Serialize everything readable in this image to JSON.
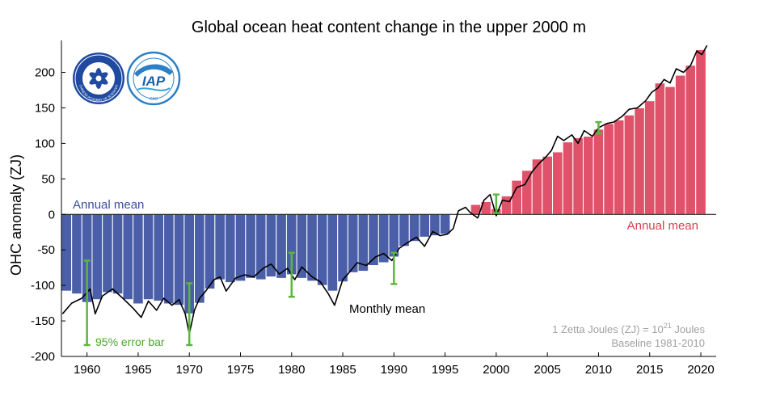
{
  "chart_data": {
    "type": "bar",
    "title": "Global ocean heat content change in the upper 2000 m",
    "xlabel": "",
    "ylabel": "OHC anomaly (ZJ)",
    "xlim": [
      1957.5,
      2021.5
    ],
    "ylim": [
      -200,
      245
    ],
    "xticks": [
      1960,
      1965,
      1970,
      1975,
      1980,
      1985,
      1990,
      1995,
      2000,
      2005,
      2010,
      2015,
      2020
    ],
    "yticks": [
      -200,
      -150,
      -100,
      -50,
      0,
      50,
      100,
      150,
      200
    ],
    "grid": false,
    "colors": {
      "negative": "#4a5fa8",
      "positive": "#e0526a",
      "line": "#000000",
      "error": "#5bb73b",
      "note": "#a0a0a0"
    },
    "series": [
      {
        "name": "Annual mean",
        "x": [
          1958,
          1959,
          1960,
          1961,
          1962,
          1963,
          1964,
          1965,
          1966,
          1967,
          1968,
          1969,
          1970,
          1971,
          1972,
          1973,
          1974,
          1975,
          1976,
          1977,
          1978,
          1979,
          1980,
          1981,
          1982,
          1983,
          1984,
          1985,
          1986,
          1987,
          1988,
          1989,
          1990,
          1991,
          1992,
          1993,
          1994,
          1995,
          1996,
          1997,
          1998,
          1999,
          2000,
          2001,
          2002,
          2003,
          2004,
          2005,
          2006,
          2007,
          2008,
          2009,
          2010,
          2011,
          2012,
          2013,
          2014,
          2015,
          2016,
          2017,
          2018,
          2019,
          2020
        ],
        "values": [
          -108,
          -112,
          -124,
          -120,
          -110,
          -112,
          -120,
          -126,
          -120,
          -122,
          -126,
          -128,
          -140,
          -125,
          -105,
          -92,
          -96,
          -94,
          -90,
          -92,
          -88,
          -90,
          -85,
          -90,
          -94,
          -100,
          -108,
          -95,
          -82,
          -80,
          -72,
          -68,
          -60,
          -45,
          -38,
          -32,
          -30,
          -28,
          0,
          1,
          14,
          18,
          8,
          26,
          48,
          62,
          78,
          82,
          88,
          102,
          108,
          110,
          120,
          128,
          133,
          140,
          150,
          160,
          185,
          180,
          196,
          210,
          232
        ]
      },
      {
        "name": "Monthly mean",
        "x": [
          1957.6,
          1958.5,
          1959.5,
          1960.3,
          1960.8,
          1961.5,
          1962.5,
          1963.5,
          1964.5,
          1965.3,
          1966,
          1966.8,
          1967.5,
          1968.3,
          1969,
          1969.6,
          1970,
          1970.5,
          1971,
          1971.6,
          1972.4,
          1973,
          1973.6,
          1974.5,
          1975.4,
          1976.3,
          1977.3,
          1978,
          1978.8,
          1979.6,
          1980.3,
          1981,
          1982,
          1982.8,
          1983.6,
          1984.2,
          1985,
          1985.5,
          1986.4,
          1987.3,
          1988.2,
          1989,
          1989.8,
          1990.5,
          1991.3,
          1992.2,
          1993,
          1993.8,
          1994.5,
          1995.2,
          1995.8,
          1996.3,
          1997,
          1997.5,
          1998.2,
          1998.8,
          1999.4,
          2000,
          2000.6,
          2001.3,
          2002,
          2002.8,
          2003.5,
          2004.2,
          2004.8,
          2005.4,
          2006,
          2006.6,
          2007.4,
          2008,
          2008.6,
          2009.4,
          2010,
          2010.8,
          2011.5,
          2012.3,
          2013,
          2013.8,
          2014.6,
          2015.2,
          2015.8,
          2016.4,
          2017,
          2017.6,
          2018.3,
          2019,
          2019.6,
          2020.1,
          2020.6
        ],
        "values": [
          -140,
          -125,
          -118,
          -105,
          -140,
          -115,
          -105,
          -118,
          -132,
          -145,
          -122,
          -135,
          -118,
          -128,
          -120,
          -140,
          -168,
          -135,
          -118,
          -108,
          -92,
          -88,
          -108,
          -90,
          -85,
          -88,
          -75,
          -70,
          -84,
          -76,
          -92,
          -74,
          -88,
          -95,
          -112,
          -128,
          -92,
          -84,
          -68,
          -72,
          -60,
          -55,
          -65,
          -48,
          -40,
          -32,
          -45,
          -24,
          -30,
          -28,
          -20,
          5,
          10,
          2,
          -5,
          20,
          28,
          -2,
          20,
          18,
          38,
          42,
          60,
          72,
          80,
          90,
          110,
          104,
          112,
          100,
          118,
          110,
          122,
          128,
          130,
          138,
          148,
          150,
          160,
          172,
          178,
          190,
          185,
          205,
          200,
          210,
          230,
          225,
          238
        ]
      }
    ],
    "error_bars": [
      {
        "x": 1960,
        "lo": -184,
        "hi": -65
      },
      {
        "x": 1970,
        "lo": -184,
        "hi": -97
      },
      {
        "x": 1980,
        "lo": -116,
        "hi": -54
      },
      {
        "x": 1990,
        "lo": -98,
        "hi": -54
      },
      {
        "x": 2000,
        "lo": 2,
        "hi": 28
      },
      {
        "x": 2010,
        "lo": 114,
        "hi": 130
      }
    ],
    "annotations": {
      "annual_mean_left": "Annual mean",
      "annual_mean_right": "Annual mean",
      "monthly_mean": "Monthly mean",
      "error_bar": "95% error bar",
      "unit_note_prefix": "1 Zetta Joules (ZJ) = 10",
      "unit_note_exp": "21",
      "unit_note_suffix": " Joules",
      "baseline": "Baseline 1981-2010"
    },
    "logos": {
      "cas": {
        "icon": "cas-seal-logo",
        "caption": "CHINESE ACADEMY OF SCIENCES"
      },
      "iap": {
        "icon": "iap-seal-logo",
        "text": "IAP",
        "caption": "CAS"
      }
    }
  }
}
